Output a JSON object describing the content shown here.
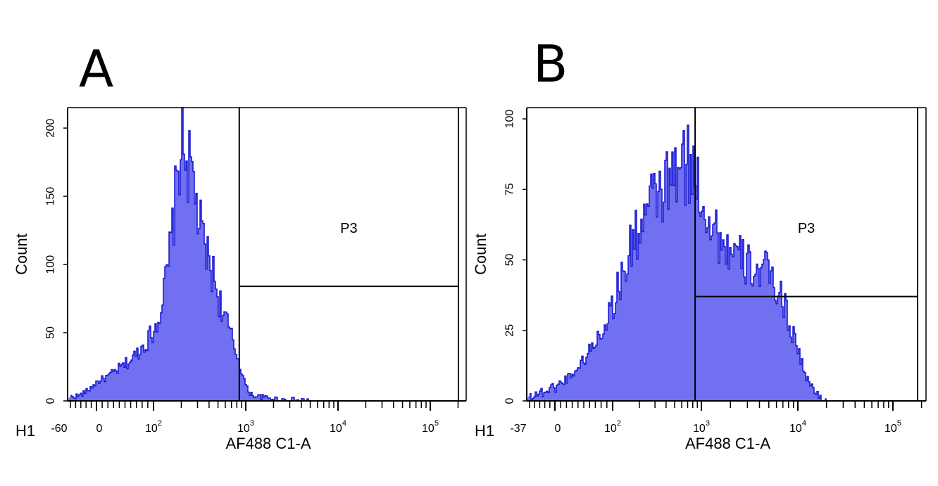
{
  "panels": {
    "A": {
      "letter": "A"
    },
    "B": {
      "letter": "B"
    }
  },
  "colors": {
    "fill": "#7070f0",
    "outline": "#1414d2",
    "axis": "#000000"
  },
  "chart_data": [
    {
      "type": "area",
      "panel": "A",
      "histogram_label": "H1",
      "xlabel": "AF488 C1-A",
      "ylabel": "Count",
      "x_scale": "biexponential",
      "x_tick_labels": [
        "-60",
        "0",
        "10^2",
        "10^3",
        "10^4",
        "10^5"
      ],
      "y_ticks": [
        0,
        50,
        100,
        150,
        200
      ],
      "ylim": [
        0,
        215
      ],
      "gate": {
        "label": "P3",
        "x_from": 850,
        "x_to": 200000,
        "y_level": 84
      },
      "series": [
        {
          "x": [
            -60,
            -40,
            -20,
            0,
            20,
            40,
            60,
            80,
            100,
            120,
            140,
            160,
            180,
            200,
            220,
            240,
            260,
            280,
            300,
            330,
            360,
            400,
            450,
            500,
            560,
            630,
            700,
            780,
            850,
            900,
            950,
            1000,
            1080,
            1200,
            1400,
            1800,
            2500,
            5000
          ],
          "values": [
            3,
            4,
            8,
            14,
            18,
            24,
            30,
            40,
            52,
            70,
            95,
            130,
            165,
            195,
            180,
            170,
            165,
            150,
            135,
            120,
            110,
            100,
            90,
            75,
            65,
            55,
            45,
            35,
            28,
            20,
            15,
            10,
            6,
            4,
            3,
            2,
            1,
            0
          ]
        }
      ]
    },
    {
      "type": "area",
      "panel": "B",
      "histogram_label": "H1",
      "xlabel": "AF488 C1-A",
      "ylabel": "Count",
      "x_scale": "biexponential",
      "x_tick_labels": [
        "-37",
        "0",
        "10^2",
        "10^3",
        "10^4",
        "10^5"
      ],
      "y_ticks": [
        0,
        25,
        50,
        75,
        100
      ],
      "ylim": [
        0,
        104
      ],
      "gate": {
        "label": "P3",
        "x_from": 850,
        "x_to": 250000,
        "y_level": 37
      },
      "series": [
        {
          "x": [
            -37,
            -20,
            -10,
            0,
            20,
            40,
            60,
            80,
            100,
            130,
            160,
            200,
            250,
            300,
            400,
            500,
            600,
            700,
            800,
            900,
            1000,
            1200,
            1500,
            2000,
            2500,
            3000,
            4000,
            5000,
            6000,
            7000,
            8000,
            10000,
            12000,
            15000,
            20000
          ],
          "values": [
            2,
            3,
            4,
            5,
            8,
            12,
            18,
            25,
            35,
            45,
            55,
            62,
            68,
            72,
            76,
            80,
            82,
            84,
            80,
            78,
            72,
            65,
            58,
            52,
            50,
            48,
            46,
            45,
            40,
            35,
            28,
            18,
            8,
            3,
            0
          ]
        }
      ]
    }
  ]
}
